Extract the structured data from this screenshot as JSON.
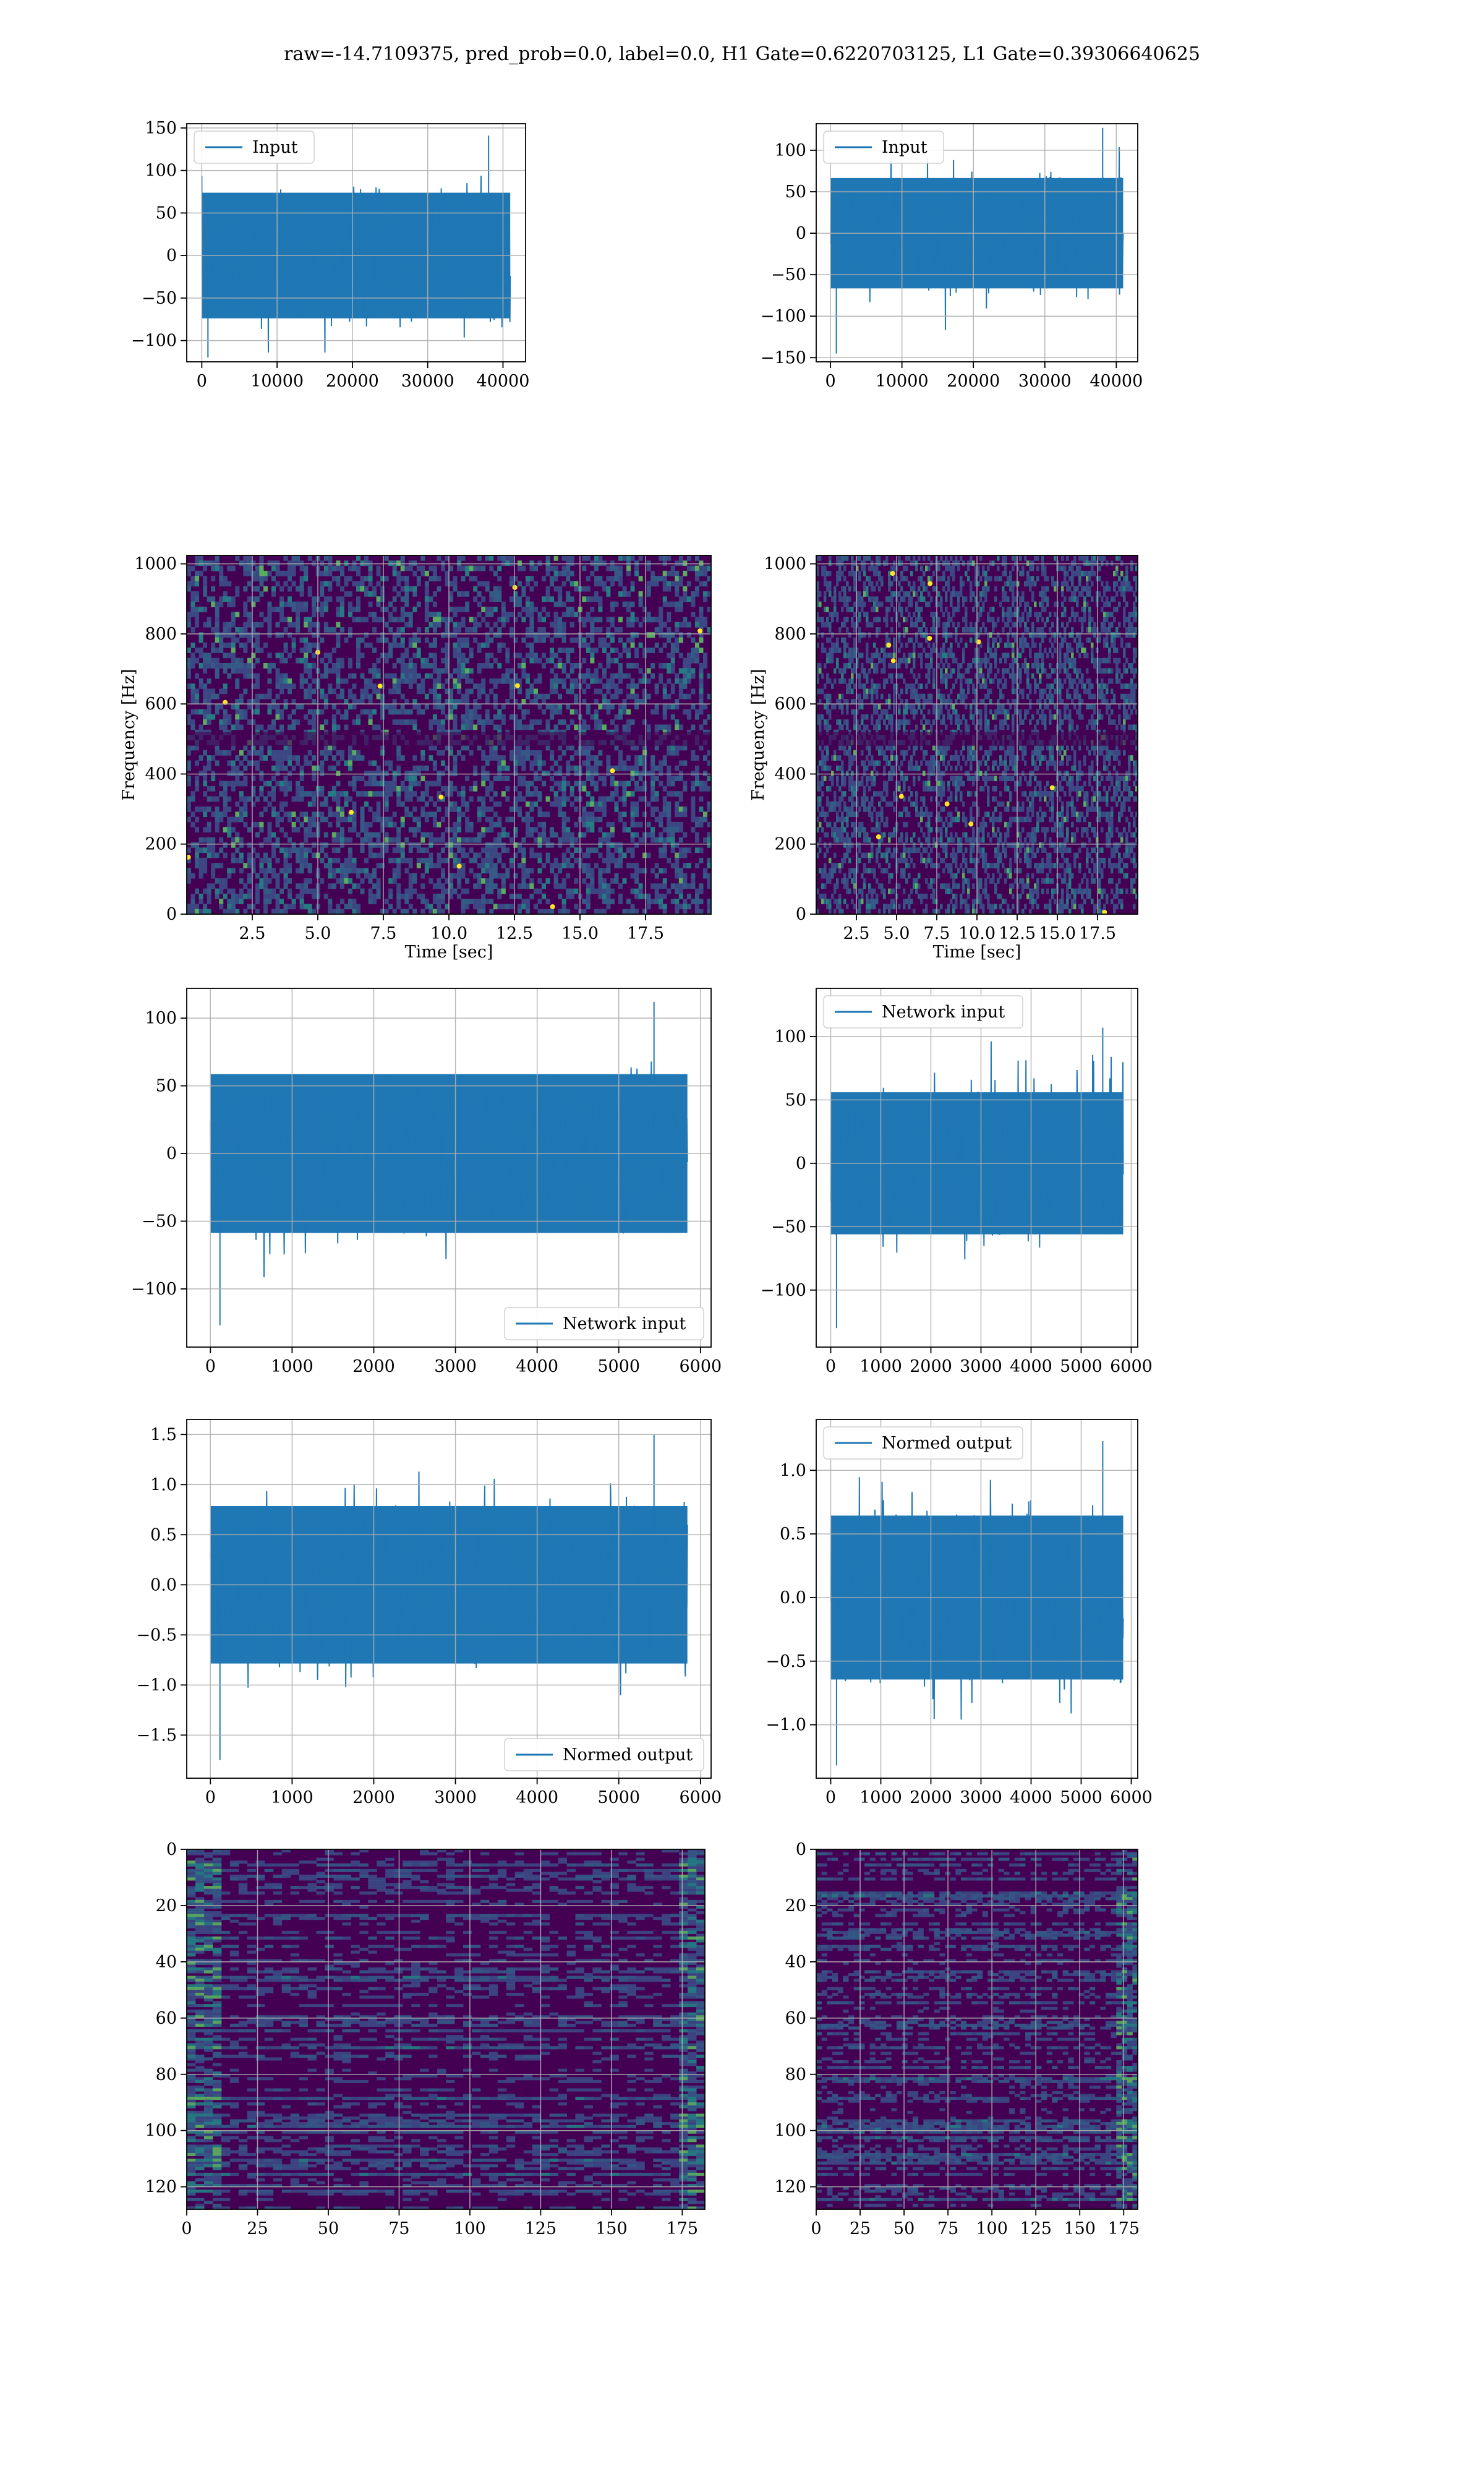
{
  "suptitle": "raw=-14.7109375, pred_prob=0.0, label=0.0, H1 Gate=0.6220703125, L1 Gate=0.39306640625",
  "colors": {
    "line": "#1f77b4",
    "grid": "#b0b0b0",
    "viridis_dark": "#440154",
    "viridis_mid": "#21918c",
    "viridis_light": "#fde725"
  },
  "chart_data": [
    {
      "type": "line",
      "panel": "row1-left",
      "series": [
        {
          "name": "Input",
          "x_range": [
            0,
            40960
          ],
          "y_envelope": [
            -120,
            141
          ]
        }
      ],
      "xlim": [
        -2000,
        43000
      ],
      "ylim": [
        -125,
        155
      ],
      "xticks": [
        0,
        10000,
        20000,
        30000,
        40000
      ],
      "yticks": [
        -100,
        -50,
        0,
        50,
        100,
        150
      ],
      "grid": true,
      "legend": "upper-left",
      "xlabel": "",
      "ylabel": ""
    },
    {
      "type": "line",
      "panel": "row1-right",
      "series": [
        {
          "name": "Input",
          "x_range": [
            0,
            40960
          ],
          "y_envelope": [
            -145,
            127
          ]
        }
      ],
      "xlim": [
        -2000,
        43000
      ],
      "ylim": [
        -155,
        132
      ],
      "xticks": [
        0,
        10000,
        20000,
        30000,
        40000
      ],
      "yticks": [
        -150,
        -100,
        -50,
        0,
        50,
        100
      ],
      "grid": true,
      "legend": "upper-left",
      "xlabel": "",
      "ylabel": ""
    },
    {
      "type": "heatmap",
      "panel": "row2-left",
      "xlim": [
        0,
        20
      ],
      "ylim": [
        0,
        1024
      ],
      "xticks": [
        2.5,
        5.0,
        7.5,
        10.0,
        12.5,
        15.0,
        17.5
      ],
      "yticks": [
        0,
        200,
        400,
        600,
        800,
        1000
      ],
      "xlabel": "Time [sec]",
      "ylabel": "Frequency [Hz]",
      "grid": true,
      "colormap": "viridis"
    },
    {
      "type": "heatmap",
      "panel": "row2-right",
      "xlim": [
        0,
        20
      ],
      "ylim": [
        0,
        1024
      ],
      "xticks": [
        2.5,
        5.0,
        7.5,
        10.0,
        12.5,
        15.0,
        17.5
      ],
      "yticks": [
        0,
        200,
        400,
        600,
        800,
        1000
      ],
      "xlabel": "Time [sec]",
      "ylabel": "Frequency [Hz]",
      "grid": true,
      "colormap": "viridis"
    },
    {
      "type": "line",
      "panel": "row3-left",
      "series": [
        {
          "name": "Network input",
          "x_range": [
            0,
            5840
          ],
          "y_envelope": [
            -127,
            112
          ]
        }
      ],
      "xlim": [
        -290,
        6130
      ],
      "ylim": [
        -143,
        122
      ],
      "xticks": [
        0,
        1000,
        2000,
        3000,
        4000,
        5000,
        6000
      ],
      "yticks": [
        -100,
        -50,
        0,
        50,
        100
      ],
      "grid": true,
      "legend": "lower-right",
      "xlabel": "",
      "ylabel": ""
    },
    {
      "type": "line",
      "panel": "row3-right",
      "series": [
        {
          "name": "Network input",
          "x_range": [
            0,
            5840
          ],
          "y_envelope": [
            -130,
            107
          ]
        }
      ],
      "xlim": [
        -290,
        6130
      ],
      "ylim": [
        -145,
        138
      ],
      "xticks": [
        0,
        1000,
        2000,
        3000,
        4000,
        5000,
        6000
      ],
      "yticks": [
        -100,
        -50,
        0,
        50,
        100
      ],
      "grid": true,
      "legend": "upper-left",
      "xlabel": "",
      "ylabel": ""
    },
    {
      "type": "line",
      "panel": "row4-left",
      "series": [
        {
          "name": "Normed output",
          "x_range": [
            0,
            5840
          ],
          "y_envelope": [
            -1.75,
            1.5
          ]
        }
      ],
      "xlim": [
        -290,
        6130
      ],
      "ylim": [
        -1.93,
        1.65
      ],
      "xticks": [
        0,
        1000,
        2000,
        3000,
        4000,
        5000,
        6000
      ],
      "yticks": [
        -1.5,
        -1.0,
        -0.5,
        0.0,
        0.5,
        1.0,
        1.5
      ],
      "grid": true,
      "legend": "lower-right",
      "xlabel": "",
      "ylabel": ""
    },
    {
      "type": "line",
      "panel": "row4-right",
      "series": [
        {
          "name": "Normed output",
          "x_range": [
            0,
            5840
          ],
          "y_envelope": [
            -1.32,
            1.23
          ]
        }
      ],
      "xlim": [
        -290,
        6130
      ],
      "ylim": [
        -1.42,
        1.4
      ],
      "xticks": [
        0,
        1000,
        2000,
        3000,
        4000,
        5000,
        6000
      ],
      "yticks": [
        -1.0,
        -0.5,
        0.0,
        0.5,
        1.0
      ],
      "grid": true,
      "legend": "upper-left",
      "xlabel": "",
      "ylabel": ""
    },
    {
      "type": "heatmap",
      "panel": "row5-left",
      "xlim": [
        0,
        183
      ],
      "ylim": [
        128,
        0
      ],
      "xticks": [
        0,
        25,
        50,
        75,
        100,
        125,
        150,
        175
      ],
      "yticks": [
        0,
        20,
        40,
        60,
        80,
        100,
        120
      ],
      "grid": true,
      "colormap": "viridis",
      "xlabel": "",
      "ylabel": ""
    },
    {
      "type": "heatmap",
      "panel": "row5-right",
      "xlim": [
        0,
        183
      ],
      "ylim": [
        128,
        0
      ],
      "xticks": [
        0,
        25,
        50,
        75,
        100,
        125,
        150,
        175
      ],
      "yticks": [
        0,
        20,
        40,
        60,
        80,
        100,
        120
      ],
      "grid": true,
      "colormap": "viridis",
      "xlabel": "",
      "ylabel": ""
    }
  ]
}
